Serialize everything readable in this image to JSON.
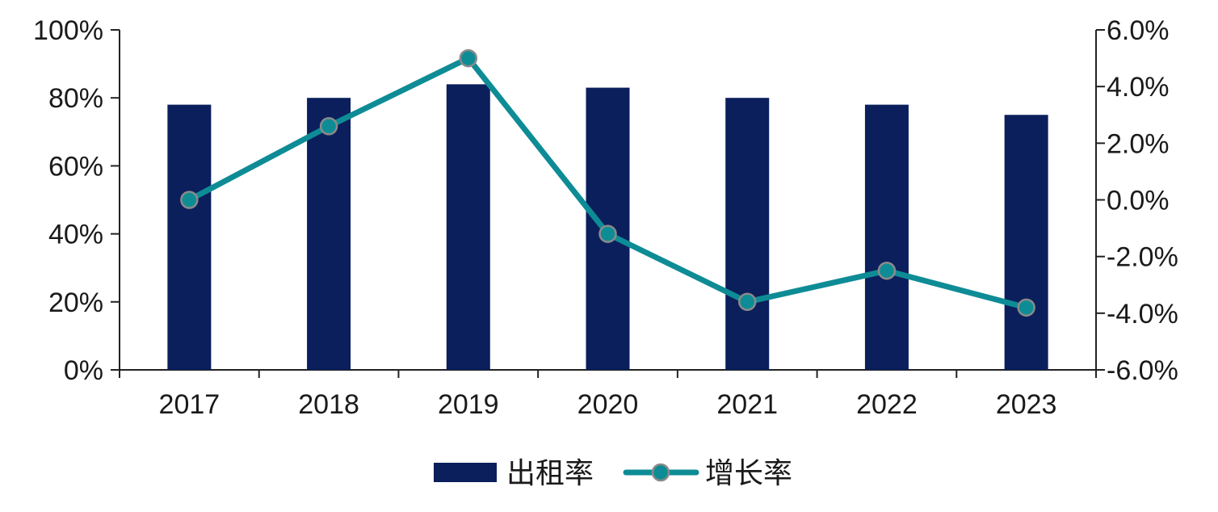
{
  "chart_data": {
    "type": "bar",
    "categories": [
      "2017",
      "2018",
      "2019",
      "2020",
      "2021",
      "2022",
      "2023"
    ],
    "series": [
      {
        "name": "出租率",
        "type": "bar",
        "axis": "left",
        "color": "#0a1f5c",
        "values": [
          0.78,
          0.8,
          0.84,
          0.83,
          0.8,
          0.78,
          0.75
        ]
      },
      {
        "name": "增长率",
        "type": "line",
        "axis": "right",
        "color": "#0e8c96",
        "marker_color": "#0e8c96",
        "marker_edge_color": "#8a8a8a",
        "values": [
          0.0,
          0.026,
          0.05,
          -0.012,
          -0.036,
          -0.025,
          -0.038
        ]
      }
    ],
    "y_left": {
      "ylim": [
        0,
        1.0
      ],
      "ticks": [
        0,
        0.2,
        0.4,
        0.6,
        0.8,
        1.0
      ],
      "tick_labels": [
        "0%",
        "20%",
        "40%",
        "60%",
        "80%",
        "100%"
      ]
    },
    "y_right": {
      "ylim": [
        -0.06,
        0.06
      ],
      "ticks": [
        -0.06,
        -0.04,
        -0.02,
        0.0,
        0.02,
        0.04,
        0.06
      ],
      "tick_labels": [
        "-6.0%",
        "-4.0%",
        "-2.0%",
        "0.0%",
        "2.0%",
        "4.0%",
        "6.0%"
      ]
    },
    "legend": {
      "placement": "bottom-center",
      "items": [
        "出租率",
        "增长率"
      ]
    },
    "grid": false
  }
}
